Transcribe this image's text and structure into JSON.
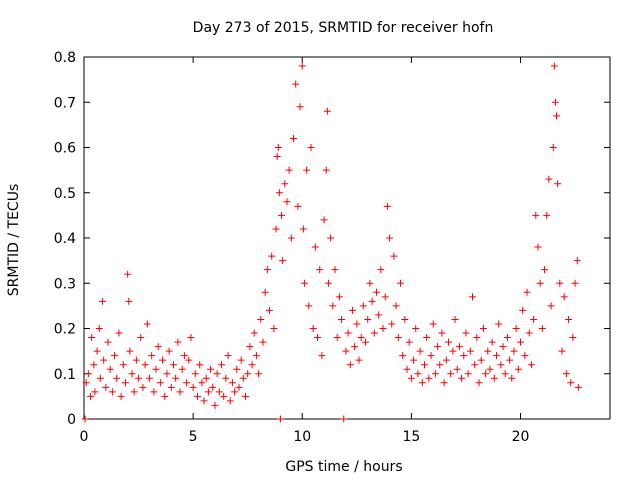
{
  "chart_data": {
    "type": "scatter",
    "title": "Day 273 of 2015, SRMTID for receiver hofn",
    "xlabel": "GPS time / hours",
    "ylabel": "SRMTID / TECUs",
    "xlim": [
      0,
      24.1
    ],
    "ylim": [
      0,
      0.8
    ],
    "xticks": [
      0,
      5,
      10,
      15,
      20
    ],
    "yticks": [
      0,
      0.1,
      0.2,
      0.3,
      0.4,
      0.5,
      0.6,
      0.7,
      0.8
    ],
    "marker": "plus",
    "color": "#ff0000",
    "series": [
      {
        "name": "SRMTID",
        "points": [
          [
            0.05,
            0.0
          ],
          [
            0.1,
            0.08
          ],
          [
            0.2,
            0.1
          ],
          [
            0.3,
            0.05
          ],
          [
            0.35,
            0.18
          ],
          [
            0.45,
            0.12
          ],
          [
            0.5,
            0.06
          ],
          [
            0.6,
            0.15
          ],
          [
            0.7,
            0.2
          ],
          [
            0.75,
            0.09
          ],
          [
            0.85,
            0.26
          ],
          [
            0.9,
            0.13
          ],
          [
            1.0,
            0.07
          ],
          [
            1.1,
            0.17
          ],
          [
            1.2,
            0.11
          ],
          [
            1.3,
            0.06
          ],
          [
            1.4,
            0.14
          ],
          [
            1.5,
            0.09
          ],
          [
            1.6,
            0.19
          ],
          [
            1.7,
            0.05
          ],
          [
            1.8,
            0.12
          ],
          [
            1.9,
            0.08
          ],
          [
            2.0,
            0.32
          ],
          [
            2.05,
            0.26
          ],
          [
            2.1,
            0.15
          ],
          [
            2.2,
            0.1
          ],
          [
            2.3,
            0.06
          ],
          [
            2.4,
            0.13
          ],
          [
            2.5,
            0.09
          ],
          [
            2.6,
            0.18
          ],
          [
            2.7,
            0.07
          ],
          [
            2.8,
            0.12
          ],
          [
            2.9,
            0.21
          ],
          [
            3.0,
            0.09
          ],
          [
            3.1,
            0.14
          ],
          [
            3.2,
            0.06
          ],
          [
            3.3,
            0.11
          ],
          [
            3.4,
            0.16
          ],
          [
            3.5,
            0.08
          ],
          [
            3.6,
            0.13
          ],
          [
            3.7,
            0.05
          ],
          [
            3.8,
            0.1
          ],
          [
            3.9,
            0.15
          ],
          [
            4.0,
            0.07
          ],
          [
            4.1,
            0.12
          ],
          [
            4.2,
            0.09
          ],
          [
            4.3,
            0.17
          ],
          [
            4.4,
            0.06
          ],
          [
            4.5,
            0.11
          ],
          [
            4.6,
            0.14
          ],
          [
            4.7,
            0.08
          ],
          [
            4.8,
            0.13
          ],
          [
            4.9,
            0.18
          ],
          [
            5.0,
            0.07
          ],
          [
            5.1,
            0.1
          ],
          [
            5.2,
            0.05
          ],
          [
            5.3,
            0.12
          ],
          [
            5.4,
            0.08
          ],
          [
            5.5,
            0.04
          ],
          [
            5.6,
            0.09
          ],
          [
            5.7,
            0.06
          ],
          [
            5.8,
            0.11
          ],
          [
            5.9,
            0.07
          ],
          [
            6.0,
            0.03
          ],
          [
            6.1,
            0.1
          ],
          [
            6.2,
            0.06
          ],
          [
            6.3,
            0.12
          ],
          [
            6.4,
            0.05
          ],
          [
            6.5,
            0.09
          ],
          [
            6.6,
            0.14
          ],
          [
            6.7,
            0.04
          ],
          [
            6.8,
            0.08
          ],
          [
            6.9,
            0.06
          ],
          [
            7.0,
            0.11
          ],
          [
            7.1,
            0.07
          ],
          [
            7.2,
            0.13
          ],
          [
            7.3,
            0.09
          ],
          [
            7.4,
            0.05
          ],
          [
            7.5,
            0.1
          ],
          [
            7.6,
            0.16
          ],
          [
            7.7,
            0.12
          ],
          [
            7.8,
            0.19
          ],
          [
            7.9,
            0.14
          ],
          [
            8.0,
            0.1
          ],
          [
            8.1,
            0.22
          ],
          [
            8.2,
            0.17
          ],
          [
            8.3,
            0.28
          ],
          [
            8.4,
            0.33
          ],
          [
            8.5,
            0.24
          ],
          [
            8.6,
            0.36
          ],
          [
            8.7,
            0.2
          ],
          [
            8.8,
            0.42
          ],
          [
            8.85,
            0.58
          ],
          [
            8.9,
            0.6
          ],
          [
            8.95,
            0.5
          ],
          [
            9.0,
            0.0
          ],
          [
            9.05,
            0.45
          ],
          [
            9.1,
            0.35
          ],
          [
            9.2,
            0.52
          ],
          [
            9.3,
            0.48
          ],
          [
            9.4,
            0.55
          ],
          [
            9.5,
            0.4
          ],
          [
            9.6,
            0.62
          ],
          [
            9.7,
            0.74
          ],
          [
            9.8,
            0.47
          ],
          [
            9.9,
            0.69
          ],
          [
            10.0,
            0.78
          ],
          [
            10.05,
            0.42
          ],
          [
            10.1,
            0.3
          ],
          [
            10.2,
            0.55
          ],
          [
            10.3,
            0.25
          ],
          [
            10.4,
            0.6
          ],
          [
            10.5,
            0.2
          ],
          [
            10.6,
            0.38
          ],
          [
            10.7,
            0.18
          ],
          [
            10.8,
            0.33
          ],
          [
            10.9,
            0.14
          ],
          [
            11.0,
            0.44
          ],
          [
            11.1,
            0.55
          ],
          [
            11.15,
            0.68
          ],
          [
            11.2,
            0.3
          ],
          [
            11.3,
            0.4
          ],
          [
            11.4,
            0.25
          ],
          [
            11.5,
            0.33
          ],
          [
            11.6,
            0.18
          ],
          [
            11.7,
            0.27
          ],
          [
            11.8,
            0.22
          ],
          [
            11.9,
            0.0
          ],
          [
            12.0,
            0.15
          ],
          [
            12.1,
            0.19
          ],
          [
            12.2,
            0.12
          ],
          [
            12.3,
            0.24
          ],
          [
            12.4,
            0.16
          ],
          [
            12.5,
            0.21
          ],
          [
            12.6,
            0.13
          ],
          [
            12.7,
            0.18
          ],
          [
            12.8,
            0.25
          ],
          [
            12.9,
            0.17
          ],
          [
            13.0,
            0.22
          ],
          [
            13.1,
            0.3
          ],
          [
            13.2,
            0.26
          ],
          [
            13.3,
            0.19
          ],
          [
            13.4,
            0.28
          ],
          [
            13.5,
            0.23
          ],
          [
            13.6,
            0.33
          ],
          [
            13.7,
            0.2
          ],
          [
            13.8,
            0.27
          ],
          [
            13.9,
            0.47
          ],
          [
            14.0,
            0.4
          ],
          [
            14.1,
            0.21
          ],
          [
            14.2,
            0.36
          ],
          [
            14.3,
            0.25
          ],
          [
            14.4,
            0.18
          ],
          [
            14.5,
            0.3
          ],
          [
            14.6,
            0.14
          ],
          [
            14.7,
            0.22
          ],
          [
            14.8,
            0.11
          ],
          [
            14.9,
            0.17
          ],
          [
            15.0,
            0.09
          ],
          [
            15.1,
            0.13
          ],
          [
            15.2,
            0.2
          ],
          [
            15.3,
            0.1
          ],
          [
            15.4,
            0.15
          ],
          [
            15.5,
            0.08
          ],
          [
            15.6,
            0.12
          ],
          [
            15.7,
            0.18
          ],
          [
            15.8,
            0.09
          ],
          [
            15.9,
            0.14
          ],
          [
            16.0,
            0.21
          ],
          [
            16.1,
            0.1
          ],
          [
            16.2,
            0.16
          ],
          [
            16.3,
            0.12
          ],
          [
            16.4,
            0.19
          ],
          [
            16.5,
            0.08
          ],
          [
            16.6,
            0.13
          ],
          [
            16.7,
            0.17
          ],
          [
            16.8,
            0.1
          ],
          [
            16.9,
            0.15
          ],
          [
            17.0,
            0.22
          ],
          [
            17.1,
            0.11
          ],
          [
            17.2,
            0.16
          ],
          [
            17.3,
            0.09
          ],
          [
            17.4,
            0.14
          ],
          [
            17.5,
            0.19
          ],
          [
            17.6,
            0.1
          ],
          [
            17.7,
            0.15
          ],
          [
            17.8,
            0.27
          ],
          [
            17.9,
            0.12
          ],
          [
            18.0,
            0.18
          ],
          [
            18.1,
            0.08
          ],
          [
            18.2,
            0.13
          ],
          [
            18.3,
            0.2
          ],
          [
            18.4,
            0.1
          ],
          [
            18.5,
            0.15
          ],
          [
            18.6,
            0.11
          ],
          [
            18.7,
            0.17
          ],
          [
            18.8,
            0.09
          ],
          [
            18.9,
            0.14
          ],
          [
            19.0,
            0.21
          ],
          [
            19.1,
            0.12
          ],
          [
            19.2,
            0.16
          ],
          [
            19.3,
            0.1
          ],
          [
            19.4,
            0.18
          ],
          [
            19.5,
            0.13
          ],
          [
            19.6,
            0.09
          ],
          [
            19.7,
            0.15
          ],
          [
            19.8,
            0.2
          ],
          [
            19.9,
            0.11
          ],
          [
            20.0,
            0.17
          ],
          [
            20.1,
            0.24
          ],
          [
            20.2,
            0.14
          ],
          [
            20.3,
            0.28
          ],
          [
            20.4,
            0.19
          ],
          [
            20.5,
            0.12
          ],
          [
            20.6,
            0.22
          ],
          [
            20.7,
            0.45
          ],
          [
            20.8,
            0.38
          ],
          [
            20.9,
            0.3
          ],
          [
            21.0,
            0.2
          ],
          [
            21.1,
            0.33
          ],
          [
            21.2,
            0.45
          ],
          [
            21.3,
            0.53
          ],
          [
            21.4,
            0.25
          ],
          [
            21.5,
            0.6
          ],
          [
            21.55,
            0.78
          ],
          [
            21.6,
            0.7
          ],
          [
            21.65,
            0.67
          ],
          [
            21.7,
            0.52
          ],
          [
            21.8,
            0.3
          ],
          [
            21.9,
            0.15
          ],
          [
            22.0,
            0.27
          ],
          [
            22.1,
            0.1
          ],
          [
            22.2,
            0.22
          ],
          [
            22.3,
            0.08
          ],
          [
            22.4,
            0.18
          ],
          [
            22.5,
            0.3
          ],
          [
            22.6,
            0.35
          ],
          [
            22.65,
            0.07
          ]
        ]
      }
    ]
  }
}
